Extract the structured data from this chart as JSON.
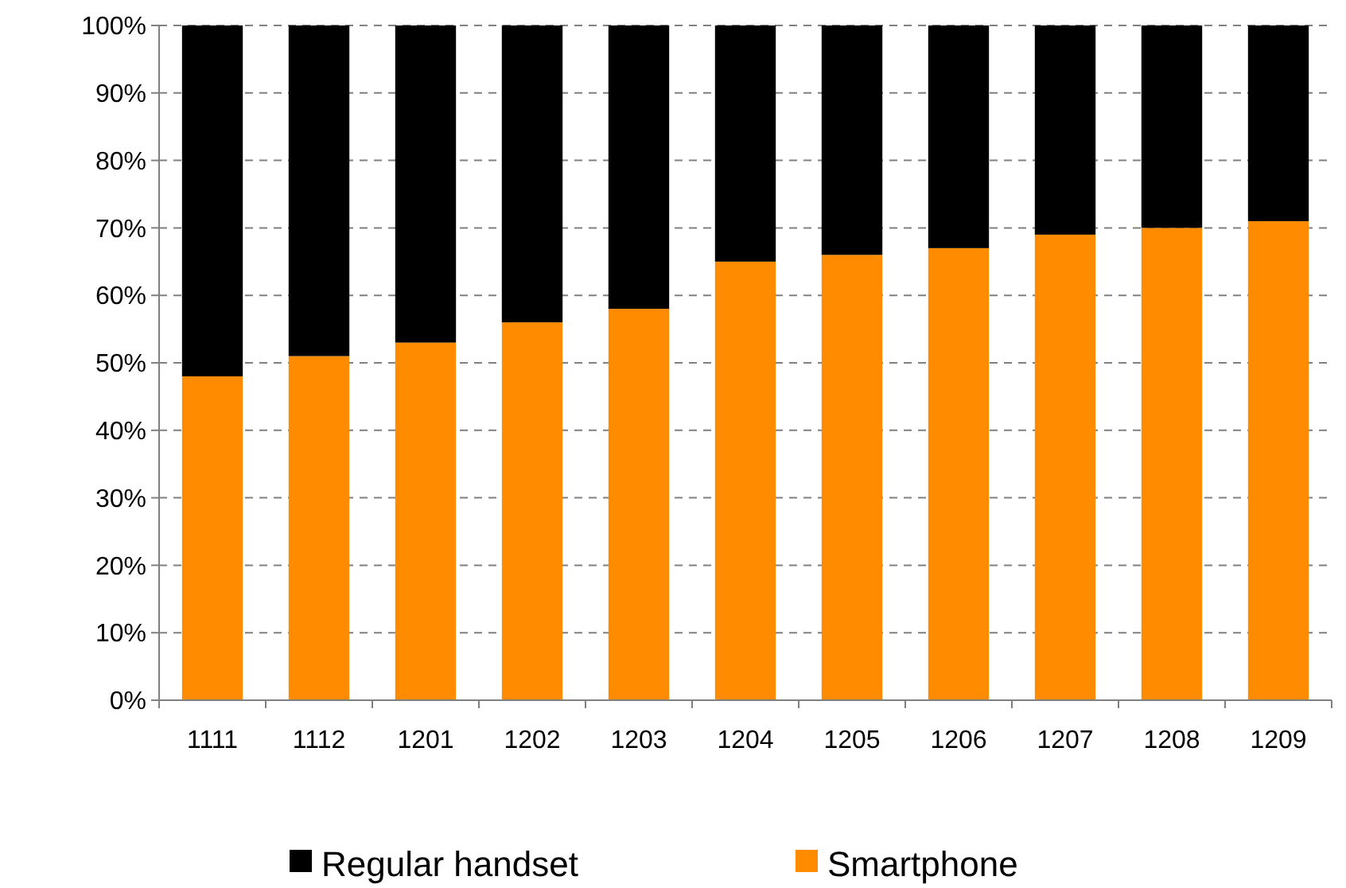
{
  "chart_data": {
    "type": "bar",
    "stacked": true,
    "categories": [
      "1111",
      "1112",
      "1201",
      "1202",
      "1203",
      "1204",
      "1205",
      "1206",
      "1207",
      "1208",
      "1209"
    ],
    "series": [
      {
        "name": "Smartphone",
        "color": "#ff8c00",
        "values": [
          48,
          51,
          53,
          56,
          58,
          65,
          66,
          67,
          69,
          70,
          71
        ]
      },
      {
        "name": "Regular handset",
        "color": "#000000",
        "values": [
          52,
          49,
          47,
          44,
          42,
          35,
          34,
          33,
          31,
          30,
          29
        ]
      }
    ],
    "ylim": [
      0,
      100
    ],
    "yticks": [
      {
        "value": 0,
        "label": "0%"
      },
      {
        "value": 10,
        "label": "10%"
      },
      {
        "value": 20,
        "label": "20%"
      },
      {
        "value": 30,
        "label": "30%"
      },
      {
        "value": 40,
        "label": "40%"
      },
      {
        "value": 50,
        "label": "50%"
      },
      {
        "value": 60,
        "label": "60%"
      },
      {
        "value": 70,
        "label": "70%"
      },
      {
        "value": 80,
        "label": "80%"
      },
      {
        "value": 90,
        "label": "90%"
      },
      {
        "value": 100,
        "label": "100%"
      }
    ],
    "grid": "y",
    "legend": "bottom"
  }
}
